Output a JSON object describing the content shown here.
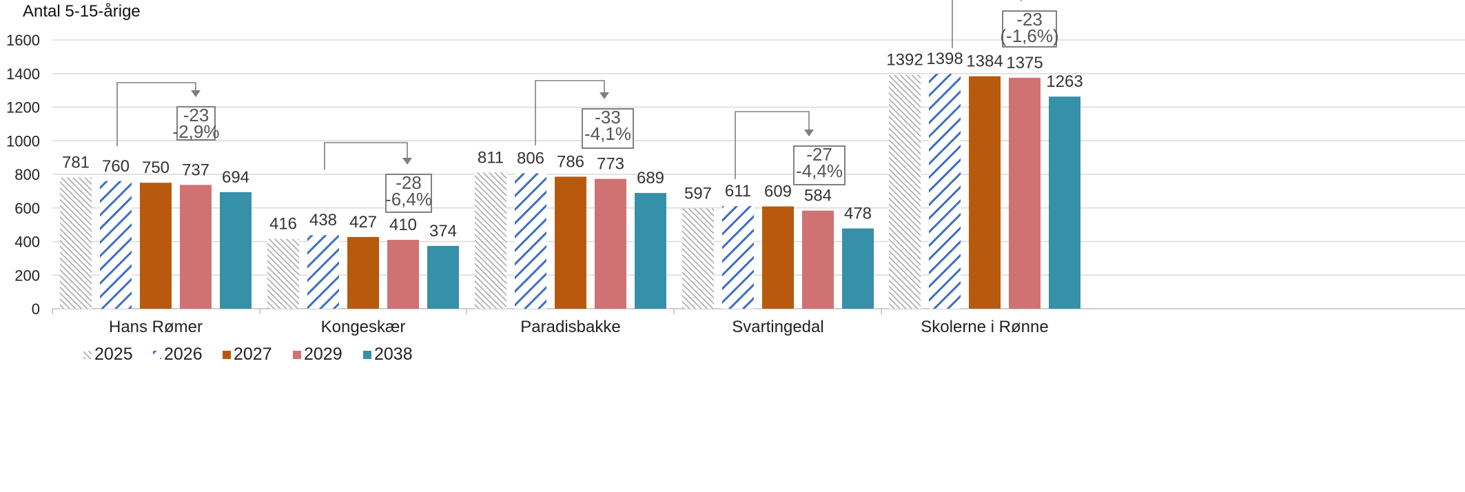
{
  "chart_data": {
    "type": "bar",
    "ylabel": "Antal 5-15-årige",
    "ylim": [
      0,
      1600
    ],
    "yticks": [
      0,
      200,
      400,
      600,
      800,
      1000,
      1200,
      1400,
      1600
    ],
    "grid": true,
    "legend_position": "bottom-left",
    "categories": [
      "Hans Rømer",
      "Kongeskær",
      "Paradisbakke",
      "Svartingedal",
      "Skolerne i Rønne"
    ],
    "series": [
      {
        "name": "2025",
        "pattern": "diag-fine-gray",
        "color": "#b8b8b8",
        "values": [
          781,
          416,
          811,
          597,
          1392
        ]
      },
      {
        "name": "2026",
        "pattern": "diag-blue",
        "color": "#3a6fc4",
        "values": [
          760,
          438,
          806,
          611,
          1398
        ]
      },
      {
        "name": "2027",
        "pattern": "solid",
        "color": "#b85a0e",
        "values": [
          750,
          427,
          786,
          609,
          1384
        ]
      },
      {
        "name": "2029",
        "pattern": "solid",
        "color": "#d07272",
        "values": [
          737,
          410,
          773,
          584,
          1375
        ]
      },
      {
        "name": "2038",
        "pattern": "solid",
        "color": "#3690a8",
        "values": [
          694,
          374,
          689,
          478,
          1263
        ]
      }
    ],
    "annotations": [
      {
        "lines": [
          "-23",
          "-2,9%"
        ]
      },
      {
        "lines": [
          "-28",
          "-6,4%"
        ]
      },
      {
        "lines": [
          "-33",
          "-4,1%"
        ]
      },
      {
        "lines": [
          "-27",
          "-4,4%"
        ]
      },
      {
        "lines": [
          "-23",
          "(-1,6%)"
        ]
      }
    ]
  }
}
